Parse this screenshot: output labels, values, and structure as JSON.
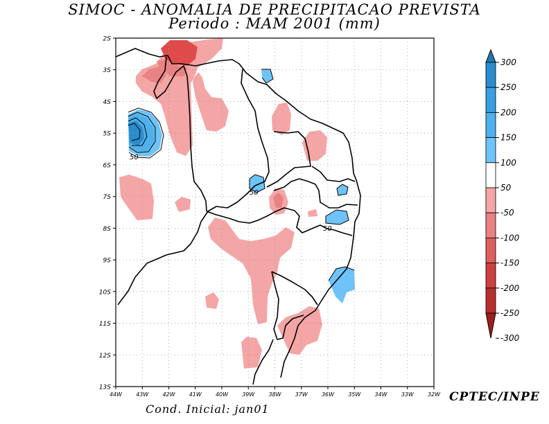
{
  "title_line1": "SIMOC -  ANOMALIA DE PRECIPITACAO PREVISTA",
  "title_line2": "Periodo : MAM 2001 (mm)",
  "initial_condition": "Cond. Inicial: jan01",
  "credit": "CPTEC/INPE",
  "lat_ticks": [
    "2S",
    "3S",
    "4S",
    "5S",
    "6S",
    "7S",
    "8S",
    "9S",
    "10S",
    "11S",
    "12S",
    "13S"
  ],
  "lon_ticks": [
    "44W",
    "43W",
    "42W",
    "41W",
    "40W",
    "39W",
    "38W",
    "37W",
    "36W",
    "35W",
    "34W",
    "33W",
    "32W"
  ],
  "contour_labels": [
    "50",
    "50",
    "50",
    "50"
  ],
  "colorbar": {
    "labels": [
      "300",
      "250",
      "200",
      "150",
      "100",
      "50",
      "-50",
      "-100",
      "-150",
      "-200",
      "-250",
      "-300"
    ],
    "colors": [
      "#1f78b4",
      "#2b8ccd",
      "#3a9fe0",
      "#4fb0ee",
      "#6ec3f8",
      "#ffffff",
      "#f4a5a5",
      "#e98383",
      "#df5f5f",
      "#cc4040",
      "#b82e2e",
      "#a01e1e"
    ]
  },
  "anomaly_colors": {
    "neg_light": "#f4a5a5",
    "neg_medium": "#e98383",
    "neg_strong": "#df4b4b",
    "pos_light": "#6ec3f8",
    "pos_medium": "#4fb0ee",
    "pos_strong": "#2b8ccd"
  }
}
